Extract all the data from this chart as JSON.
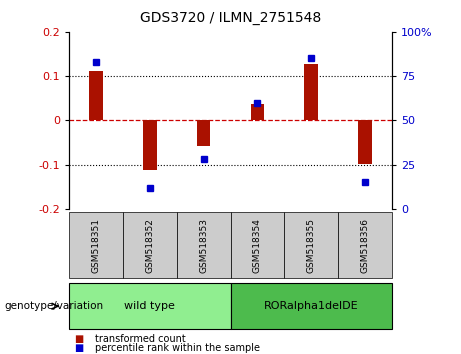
{
  "title": "GDS3720 / ILMN_2751548",
  "samples": [
    "GSM518351",
    "GSM518352",
    "GSM518353",
    "GSM518354",
    "GSM518355",
    "GSM518356"
  ],
  "red_values": [
    0.112,
    -0.113,
    -0.058,
    0.038,
    0.128,
    -0.098
  ],
  "blue_values": [
    83,
    12,
    28,
    60,
    85,
    15
  ],
  "groups": [
    {
      "label": "wild type",
      "start": 0,
      "end": 3,
      "color": "#90ee90"
    },
    {
      "label": "RORalpha1delDE",
      "start": 3,
      "end": 6,
      "color": "#4dbb4d"
    }
  ],
  "ylim_left": [
    -0.2,
    0.2
  ],
  "ylim_right": [
    0,
    100
  ],
  "yticks_left": [
    -0.2,
    -0.1,
    0.0,
    0.1,
    0.2
  ],
  "yticks_right": [
    0,
    25,
    50,
    75,
    100
  ],
  "left_tick_color": "#cc0000",
  "right_tick_color": "#0000cc",
  "bar_color": "#aa1100",
  "dot_color": "#0000cc",
  "zero_line_color": "#cc0000",
  "dot_line_color": "#000000",
  "legend_labels": [
    "transformed count",
    "percentile rank within the sample"
  ],
  "legend_colors": [
    "#aa1100",
    "#0000cc"
  ],
  "genotype_label": "genotype/variation",
  "sample_box_color": "#cccccc",
  "group_box_light": "#90ee90",
  "group_box_dark": "#4dbb4d",
  "bar_width": 0.25,
  "dot_size": 5
}
